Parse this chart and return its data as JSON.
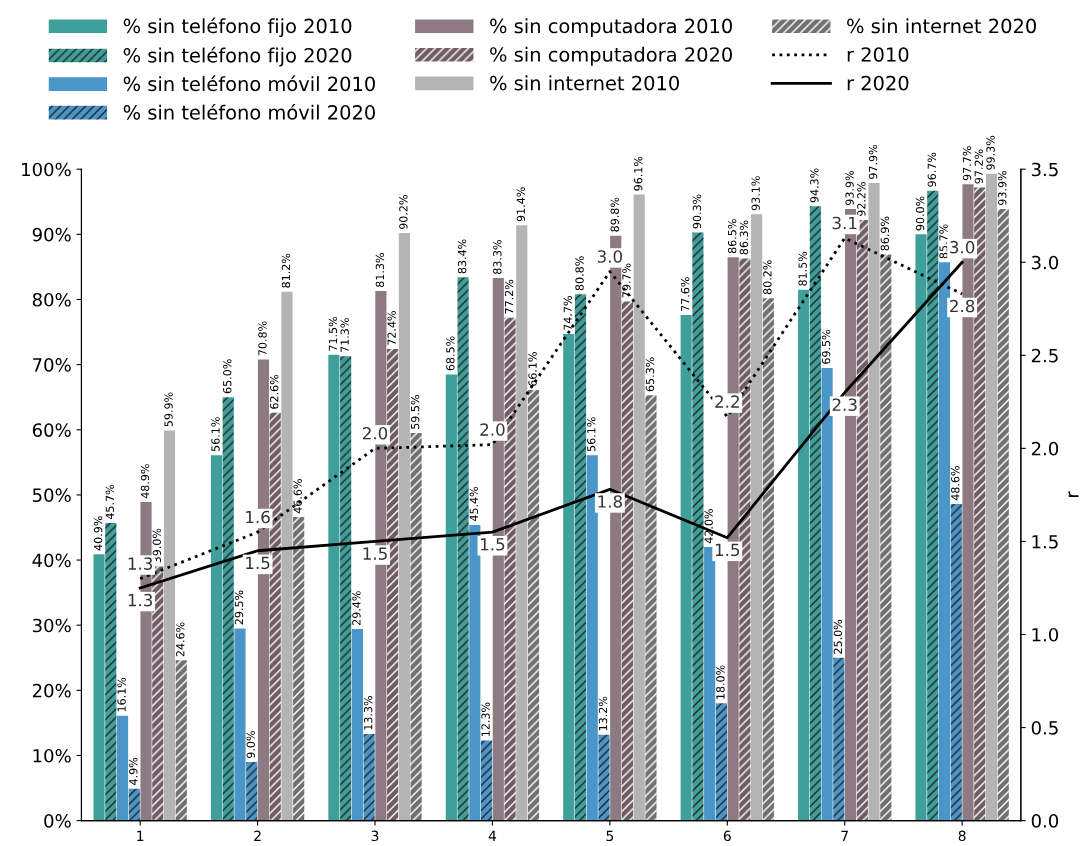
{
  "chart_data": {
    "type": "bar",
    "categories": [
      "1",
      "2",
      "3",
      "4",
      "5",
      "6",
      "7",
      "8"
    ],
    "y2label": "r",
    "series": [
      {
        "name": "% sin teléfono fijo 2010",
        "color": "#3fa09b",
        "values": [
          40.9,
          56.1,
          71.5,
          68.5,
          74.7,
          77.6,
          81.5,
          90.0
        ],
        "value_labels": [
          "40.9%",
          "56.1%",
          "71.5%",
          "68.5%",
          "74.7%",
          "77.6%",
          "81.5%",
          "90.0%"
        ]
      },
      {
        "name": "% sin teléfono fijo 2020",
        "color": "#3fa09b",
        "values": [
          45.7,
          65.0,
          71.3,
          83.4,
          80.8,
          90.3,
          94.3,
          96.7
        ],
        "value_labels": [
          "45.7%",
          "65.0%",
          "71.3%",
          "83.4%",
          "80.8%",
          "90.3%",
          "94.3%",
          "96.7%"
        ]
      },
      {
        "name": "% sin teléfono móvil 2010",
        "color": "#4a96c8",
        "values": [
          16.1,
          29.5,
          29.4,
          45.4,
          56.1,
          42.0,
          69.5,
          85.7
        ],
        "value_labels": [
          "16.1%",
          "29.5%",
          "29.4%",
          "45.4%",
          "56.1%",
          "42.0%",
          "69.5%",
          "85.7%"
        ]
      },
      {
        "name": "% sin teléfono móvil 2020",
        "color": "#4a96c8",
        "values": [
          4.9,
          9.0,
          13.3,
          12.3,
          13.2,
          18.0,
          25.0,
          48.6
        ],
        "value_labels": [
          "4.9%",
          "9.0%",
          "13.3%",
          "12.3%",
          "13.2%",
          "18.0%",
          "25.0%",
          "48.6%"
        ]
      },
      {
        "name": "% sin computadora 2010",
        "color": "#8d7a82",
        "values": [
          48.9,
          70.8,
          81.3,
          83.3,
          89.8,
          86.5,
          93.9,
          97.7
        ],
        "value_labels": [
          "48.9%",
          "70.8%",
          "81.3%",
          "83.3%",
          "89.8%",
          "86.5%",
          "93.9%",
          "97.7%"
        ]
      },
      {
        "name": "% sin computadora 2020",
        "color": "#6e5c63",
        "values": [
          39.0,
          62.6,
          72.4,
          77.2,
          79.7,
          86.3,
          92.2,
          97.2
        ],
        "value_labels": [
          "39.0%",
          "62.6%",
          "72.4%",
          "77.2%",
          "79.7%",
          "86.3%",
          "92.2%",
          "97.2%"
        ]
      },
      {
        "name": "% sin internet 2010",
        "color": "#b4b4b4",
        "values": [
          59.9,
          81.2,
          90.2,
          91.4,
          96.1,
          93.1,
          97.9,
          99.3
        ],
        "value_labels": [
          "59.9%",
          "81.2%",
          "90.2%",
          "91.4%",
          "96.1%",
          "93.1%",
          "97.9%",
          "99.3%"
        ]
      },
      {
        "name": "% sin internet 2020",
        "color": "#707070",
        "values": [
          24.6,
          46.6,
          59.5,
          66.1,
          65.3,
          80.2,
          86.9,
          93.9
        ],
        "value_labels": [
          "24.6%",
          "46.6%",
          "59.5%",
          "66.1%",
          "65.3%",
          "80.2%",
          "86.9%",
          "93.9%"
        ]
      },
      {
        "name": "r 2010",
        "type": "line",
        "axis": "y2",
        "color": "#000000",
        "line_style": "dotted",
        "values": [
          1.3,
          1.55,
          2.0,
          2.02,
          2.95,
          2.17,
          3.13,
          2.83
        ],
        "value_labels": [
          "1.3",
          "1.6",
          "2.0",
          "2.0",
          "3.0",
          "2.2",
          "3.1",
          "2.8"
        ]
      },
      {
        "name": "r 2020",
        "type": "line",
        "axis": "y2",
        "color": "#000000",
        "line_style": "solid",
        "values": [
          1.25,
          1.45,
          1.5,
          1.55,
          1.78,
          1.52,
          2.3,
          3.0
        ],
        "value_labels": [
          "1.3",
          "1.5",
          "1.5",
          "1.5",
          "1.8",
          "1.5",
          "2.3",
          "3.0"
        ]
      }
    ],
    "ylim": [
      0,
      100
    ],
    "yticks": [
      {
        "value": 0,
        "label": "0%"
      },
      {
        "value": 10,
        "label": "10%"
      },
      {
        "value": 20,
        "label": "20%"
      },
      {
        "value": 30,
        "label": "30%"
      },
      {
        "value": 40,
        "label": "40%"
      },
      {
        "value": 50,
        "label": "50%"
      },
      {
        "value": 60,
        "label": "60%"
      },
      {
        "value": 70,
        "label": "70%"
      },
      {
        "value": 80,
        "label": "80%"
      },
      {
        "value": 90,
        "label": "90%"
      },
      {
        "value": 100,
        "label": "100%"
      }
    ],
    "y2lim": [
      0,
      3.5
    ],
    "y2ticks": [
      {
        "value": 0,
        "label": "0.0"
      },
      {
        "value": 0.5,
        "label": "0.5"
      },
      {
        "value": 1,
        "label": "1.0"
      },
      {
        "value": 1.5,
        "label": "1.5"
      },
      {
        "value": 2,
        "label": "2.0"
      },
      {
        "value": 2.5,
        "label": "2.5"
      },
      {
        "value": 3,
        "label": "3.0"
      },
      {
        "value": 3.5,
        "label": "3.5"
      }
    ],
    "legend": "top",
    "grid": false,
    "marker": "none"
  }
}
